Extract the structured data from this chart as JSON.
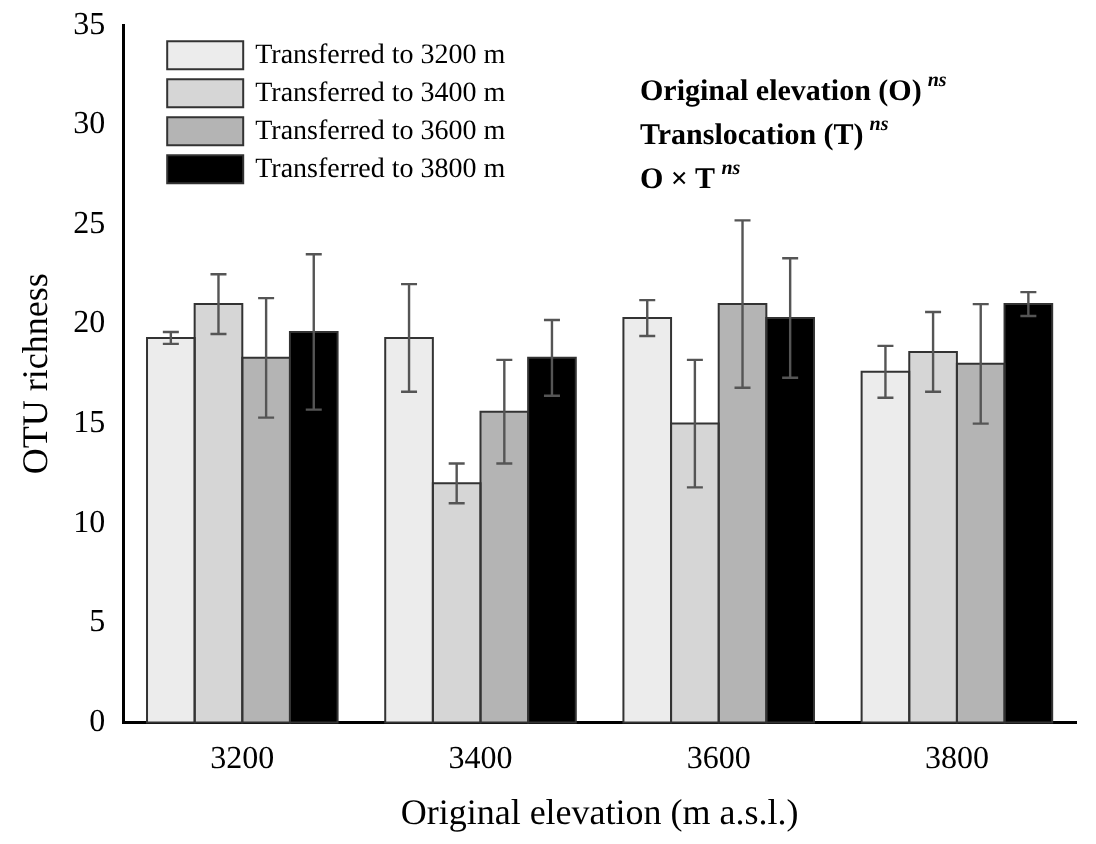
{
  "chart_data": {
    "type": "bar",
    "xlabel": "Original elevation (m a.s.l.)",
    "ylabel": "OTU richness",
    "categories": [
      "3200",
      "3400",
      "3600",
      "3800"
    ],
    "series": [
      {
        "name": "Transferred to 3200 m",
        "color": "#ececec",
        "values": [
          19.3,
          19.3,
          20.3,
          17.6
        ],
        "errors": [
          0.3,
          2.7,
          0.9,
          1.3
        ]
      },
      {
        "name": "Transferred to 3400 m",
        "color": "#d6d6d6",
        "values": [
          21.0,
          12.0,
          15.0,
          18.6
        ],
        "errors": [
          1.5,
          1.0,
          3.2,
          2.0
        ]
      },
      {
        "name": "Transferred to 3600 m",
        "color": "#b4b4b4",
        "values": [
          18.3,
          15.6,
          21.0,
          18.0
        ],
        "errors": [
          3.0,
          2.6,
          4.2,
          3.0
        ]
      },
      {
        "name": "Transferred to 3800 m",
        "color": "#000000",
        "values": [
          19.6,
          18.3,
          20.3,
          21.0
        ],
        "errors": [
          3.9,
          1.9,
          3.0,
          0.6
        ]
      }
    ],
    "ylim": [
      0,
      35
    ],
    "yticks": [
      0,
      5,
      10,
      15,
      20,
      25,
      30,
      35
    ],
    "grid": false,
    "legend": "top left",
    "annotations": [
      "Original elevation (O) $^{ns}$",
      "Translocation (T) $^{ns}$",
      "O × T $^{ns}$"
    ]
  }
}
